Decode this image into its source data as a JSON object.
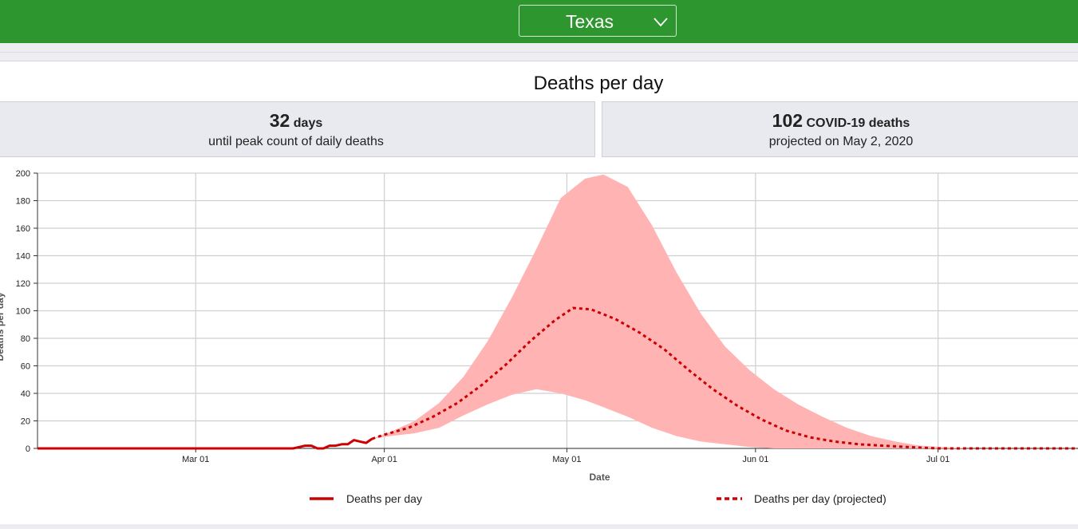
{
  "header": {
    "state_select_value": "Texas",
    "background_color": "#2e962e",
    "icon": "chevron-down-icon"
  },
  "panel": {
    "title": "Deaths per day"
  },
  "stats": [
    {
      "value": "32",
      "unit": "days",
      "caption": "until peak count of daily deaths"
    },
    {
      "value": "102",
      "unit": "COVID-19 deaths",
      "caption": "projected on May 2, 2020"
    }
  ],
  "chart_data": {
    "type": "line",
    "xlabel": "Date",
    "ylabel": "Deaths per day",
    "ylim": [
      0,
      200
    ],
    "yticks": [
      0,
      20,
      40,
      60,
      80,
      100,
      120,
      140,
      160,
      180,
      200
    ],
    "xlim": [
      "2020-02-04",
      "2020-07-24"
    ],
    "xticks": [
      {
        "date": "2020-03-01",
        "label": "Mar 01"
      },
      {
        "date": "2020-04-01",
        "label": "Apr 01"
      },
      {
        "date": "2020-05-01",
        "label": "May 01"
      },
      {
        "date": "2020-06-01",
        "label": "Jun 01"
      },
      {
        "date": "2020-07-01",
        "label": "Jul 01"
      }
    ],
    "grid": true,
    "legend": "bottom",
    "colors": {
      "line": "#cc0000",
      "band": "#ffb3b3"
    },
    "series": [
      {
        "name": "Deaths per day",
        "style": "solid",
        "points": [
          {
            "x": "2020-02-04",
            "y": 0
          },
          {
            "x": "2020-03-10",
            "y": 0
          },
          {
            "x": "2020-03-17",
            "y": 0
          },
          {
            "x": "2020-03-18",
            "y": 1
          },
          {
            "x": "2020-03-19",
            "y": 2
          },
          {
            "x": "2020-03-20",
            "y": 2
          },
          {
            "x": "2020-03-21",
            "y": 0
          },
          {
            "x": "2020-03-22",
            "y": 0
          },
          {
            "x": "2020-03-23",
            "y": 2
          },
          {
            "x": "2020-03-24",
            "y": 2
          },
          {
            "x": "2020-03-25",
            "y": 3
          },
          {
            "x": "2020-03-26",
            "y": 3
          },
          {
            "x": "2020-03-27",
            "y": 6
          },
          {
            "x": "2020-03-28",
            "y": 5
          },
          {
            "x": "2020-03-29",
            "y": 4
          },
          {
            "x": "2020-03-30",
            "y": 7
          }
        ]
      },
      {
        "name": "Deaths per day (projected)",
        "style": "dashed",
        "points": [
          {
            "x": "2020-03-30",
            "y": 7
          },
          {
            "x": "2020-04-01",
            "y": 10
          },
          {
            "x": "2020-04-05",
            "y": 15
          },
          {
            "x": "2020-04-09",
            "y": 23
          },
          {
            "x": "2020-04-13",
            "y": 33
          },
          {
            "x": "2020-04-17",
            "y": 46
          },
          {
            "x": "2020-04-21",
            "y": 61
          },
          {
            "x": "2020-04-25",
            "y": 78
          },
          {
            "x": "2020-04-29",
            "y": 93
          },
          {
            "x": "2020-05-02",
            "y": 102
          },
          {
            "x": "2020-05-05",
            "y": 101
          },
          {
            "x": "2020-05-09",
            "y": 94
          },
          {
            "x": "2020-05-13",
            "y": 84
          },
          {
            "x": "2020-05-17",
            "y": 72
          },
          {
            "x": "2020-05-21",
            "y": 57
          },
          {
            "x": "2020-05-25",
            "y": 43
          },
          {
            "x": "2020-05-29",
            "y": 31
          },
          {
            "x": "2020-06-02",
            "y": 21
          },
          {
            "x": "2020-06-06",
            "y": 13
          },
          {
            "x": "2020-06-10",
            "y": 8
          },
          {
            "x": "2020-06-14",
            "y": 5
          },
          {
            "x": "2020-06-18",
            "y": 3
          },
          {
            "x": "2020-06-22",
            "y": 2
          },
          {
            "x": "2020-06-26",
            "y": 1
          },
          {
            "x": "2020-07-01",
            "y": 0
          },
          {
            "x": "2020-07-24",
            "y": 0
          }
        ]
      }
    ],
    "band": {
      "name": "Deaths per day (projected) uncertainty",
      "points": [
        {
          "x": "2020-03-30",
          "lo": 7,
          "hi": 7
        },
        {
          "x": "2020-04-02",
          "lo": 9,
          "hi": 12
        },
        {
          "x": "2020-04-06",
          "lo": 11,
          "hi": 20
        },
        {
          "x": "2020-04-10",
          "lo": 15,
          "hi": 33
        },
        {
          "x": "2020-04-14",
          "lo": 24,
          "hi": 52
        },
        {
          "x": "2020-04-18",
          "lo": 32,
          "hi": 78
        },
        {
          "x": "2020-04-22",
          "lo": 39,
          "hi": 110
        },
        {
          "x": "2020-04-26",
          "lo": 43,
          "hi": 145
        },
        {
          "x": "2020-04-30",
          "lo": 40,
          "hi": 182
        },
        {
          "x": "2020-05-04",
          "lo": 35,
          "hi": 196
        },
        {
          "x": "2020-05-07",
          "lo": 30,
          "hi": 199
        },
        {
          "x": "2020-05-11",
          "lo": 23,
          "hi": 190
        },
        {
          "x": "2020-05-15",
          "lo": 15,
          "hi": 162
        },
        {
          "x": "2020-05-19",
          "lo": 9,
          "hi": 128
        },
        {
          "x": "2020-05-23",
          "lo": 5,
          "hi": 98
        },
        {
          "x": "2020-05-27",
          "lo": 3,
          "hi": 74
        },
        {
          "x": "2020-05-31",
          "lo": 1,
          "hi": 57
        },
        {
          "x": "2020-06-04",
          "lo": 0,
          "hi": 43
        },
        {
          "x": "2020-06-08",
          "lo": 0,
          "hi": 32
        },
        {
          "x": "2020-06-12",
          "lo": 0,
          "hi": 23
        },
        {
          "x": "2020-06-16",
          "lo": 0,
          "hi": 15
        },
        {
          "x": "2020-06-20",
          "lo": 0,
          "hi": 9
        },
        {
          "x": "2020-06-24",
          "lo": 0,
          "hi": 5
        },
        {
          "x": "2020-06-28",
          "lo": 0,
          "hi": 2
        },
        {
          "x": "2020-07-02",
          "lo": 0,
          "hi": 1
        },
        {
          "x": "2020-07-06",
          "lo": 0,
          "hi": 0
        }
      ]
    }
  }
}
